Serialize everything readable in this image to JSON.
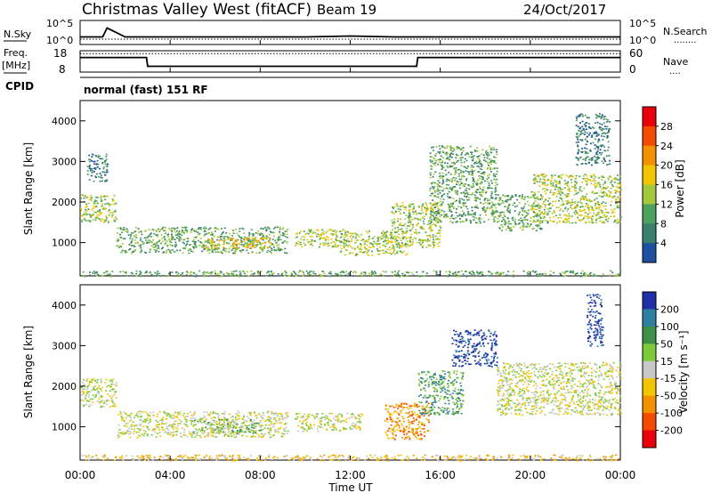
{
  "header": {
    "title": "Christmas Valley West (fitACF)",
    "beam": "Beam 19",
    "date": "24/Oct/2017"
  },
  "panels": {
    "nsky": {
      "label": "N.Sky",
      "left_ticks": [
        "10^5",
        "10^0"
      ],
      "right_ticks": [
        "10^5",
        "10^0"
      ],
      "right_label": "N.Search",
      "right_legend": "........"
    },
    "freq": {
      "label_line1": "Freq.",
      "label_line2": "[MHz]",
      "left_ticks": [
        "18",
        "8"
      ],
      "right_ticks": [
        "60",
        "0"
      ],
      "right_label": "Nave",
      "right_legend": "....",
      "cpid_label": "CPID",
      "cpid_text": "normal (fast) 151 RF"
    },
    "power": {
      "ylabel": "Slant Range [km]",
      "y_ticks": [
        "4000",
        "3000",
        "2000",
        "1000"
      ],
      "colorbar_label": "Power [dB]",
      "colorbar_ticks": [
        "28",
        "24",
        "20",
        "16",
        "12",
        "8",
        "4"
      ],
      "colorbar_colors": [
        "#e8000b",
        "#f34a00",
        "#f39200",
        "#f2c500",
        "#a3c93a",
        "#4da15f",
        "#3a7f6a",
        "#1f4fa0",
        "#0000f0"
      ]
    },
    "velocity": {
      "ylabel": "Slant Range [km]",
      "y_ticks": [
        "4000",
        "3000",
        "2000",
        "1000"
      ],
      "colorbar_label": "Velocity [m s⁻¹]",
      "colorbar_ticks": [
        "200",
        "100",
        "50",
        "15",
        "-15",
        "-50",
        "-100",
        "-200"
      ],
      "colorbar_colors": [
        "#1f2fa8",
        "#2e7fa2",
        "#3d8f4a",
        "#7fca3a",
        "#c8c8c8",
        "#f2c500",
        "#f39200",
        "#f34a00",
        "#e8000b"
      ]
    }
  },
  "x_axis": {
    "label": "Time UT",
    "ticks": [
      "00:00",
      "04:00",
      "08:00",
      "12:00",
      "16:00",
      "20:00",
      "00:00"
    ]
  },
  "chart_data": [
    {
      "type": "line",
      "title": "N.Sky / N.Search",
      "x_hours": [
        0,
        0.5,
        1.0,
        1.2,
        2,
        4,
        6,
        8,
        10,
        12,
        14,
        16,
        18,
        20,
        22,
        23.5,
        24
      ],
      "series": [
        {
          "name": "N.Sky",
          "values": [
            1.5,
            1.5,
            1.5,
            3.5,
            1.5,
            1.5,
            1.5,
            1.5,
            1.5,
            1.7,
            1.5,
            1.5,
            1.5,
            1.5,
            1.5,
            1.5,
            1.5
          ]
        },
        {
          "name": "N.Search",
          "values": [
            1,
            1,
            1,
            1,
            1,
            1,
            1,
            1,
            1,
            1,
            1,
            1,
            1,
            1,
            1,
            1,
            1
          ]
        }
      ],
      "ylim": [
        0,
        5
      ]
    },
    {
      "type": "line",
      "title": "Freq. / Nave",
      "x_hours": [
        0,
        2.95,
        3.0,
        14.95,
        15.0,
        24
      ],
      "series": [
        {
          "name": "Freq.",
          "values": [
            15,
            15,
            10.5,
            10.5,
            15,
            15
          ]
        },
        {
          "name": "Nave",
          "values": [
            17,
            17,
            17,
            17,
            17,
            17
          ]
        }
      ],
      "ylim": [
        8,
        18
      ]
    },
    {
      "type": "heatmap",
      "title": "Power [dB]",
      "ylabel": "Slant Range [km]",
      "xlabel": "Time UT",
      "xlim": [
        0,
        24
      ],
      "ylim": [
        180,
        4500
      ],
      "regions": [
        {
          "t0": 0.0,
          "t1": 1.6,
          "r0": 1500,
          "r1": 2200,
          "level": 4
        },
        {
          "t0": 0.3,
          "t1": 1.2,
          "r0": 2500,
          "r1": 3200,
          "level": 2
        },
        {
          "t0": 1.6,
          "t1": 9.2,
          "r0": 750,
          "r1": 1400,
          "level": 3
        },
        {
          "t0": 5.5,
          "t1": 8.5,
          "r0": 850,
          "r1": 1150,
          "level": 5
        },
        {
          "t0": 9.5,
          "t1": 11.8,
          "r0": 900,
          "r1": 1350,
          "level": 4
        },
        {
          "t0": 11.5,
          "t1": 14.5,
          "r0": 700,
          "r1": 1300,
          "level": 4
        },
        {
          "t0": 13.8,
          "t1": 16.0,
          "r0": 900,
          "r1": 2000,
          "level": 4
        },
        {
          "t0": 15.5,
          "t1": 18.5,
          "r0": 1500,
          "r1": 3400,
          "level": 3
        },
        {
          "t0": 18.5,
          "t1": 20.5,
          "r0": 1300,
          "r1": 2200,
          "level": 3
        },
        {
          "t0": 20.0,
          "t1": 24.0,
          "r0": 1500,
          "r1": 2700,
          "level": 4
        },
        {
          "t0": 22.0,
          "t1": 23.5,
          "r0": 2900,
          "r1": 4200,
          "level": 2
        },
        {
          "t0": 0.0,
          "t1": 24.0,
          "r0": 180,
          "r1": 320,
          "level": 3
        }
      ]
    },
    {
      "type": "heatmap",
      "title": "Velocity [m s⁻¹]",
      "ylabel": "Slant Range [km]",
      "xlabel": "Time UT",
      "xlim": [
        0,
        24
      ],
      "ylim": [
        180,
        4500
      ],
      "regions": [
        {
          "t0": 0.0,
          "t1": 1.6,
          "r0": 1500,
          "r1": 2200,
          "level": 4
        },
        {
          "t0": 1.6,
          "t1": 9.2,
          "r0": 750,
          "r1": 1400,
          "level": 4
        },
        {
          "t0": 5.0,
          "t1": 8.0,
          "r0": 850,
          "r1": 1200,
          "level": 5
        },
        {
          "t0": 9.5,
          "t1": 12.5,
          "r0": 900,
          "r1": 1350,
          "level": 4
        },
        {
          "t0": 13.5,
          "t1": 15.5,
          "r0": 700,
          "r1": 1600,
          "level": 2
        },
        {
          "t0": 15.0,
          "t1": 17.0,
          "r0": 1300,
          "r1": 2400,
          "level": 6
        },
        {
          "t0": 16.5,
          "t1": 18.5,
          "r0": 2500,
          "r1": 3400,
          "level": 8
        },
        {
          "t0": 18.5,
          "t1": 24.0,
          "r0": 1300,
          "r1": 2600,
          "level": 4
        },
        {
          "t0": 22.5,
          "t1": 23.2,
          "r0": 3000,
          "r1": 4300,
          "level": 8
        },
        {
          "t0": 0.0,
          "t1": 24.0,
          "r0": 180,
          "r1": 320,
          "level": 3
        }
      ]
    }
  ]
}
